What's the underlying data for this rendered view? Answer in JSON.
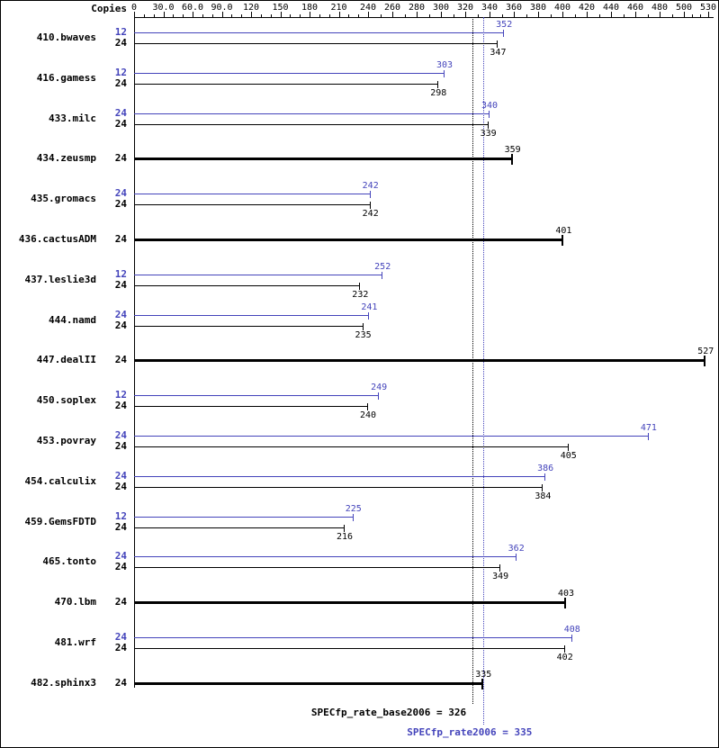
{
  "header": {
    "copies_label": "Copies"
  },
  "colors": {
    "peak": "#4444bb",
    "base": "#000000"
  },
  "chart_data": {
    "type": "bar",
    "orientation": "horizontal",
    "legend": "blue thin bars = peak (SPECfp_rate2006), black thin bars = base, bold black bars = base and peak equal",
    "axis": {
      "position": "top",
      "tick_values": [
        0,
        30,
        60,
        90,
        120,
        150,
        180,
        210,
        240,
        260,
        280,
        300,
        320,
        340,
        360,
        380,
        400,
        420,
        440,
        460,
        480,
        500,
        530
      ],
      "tick_labels": [
        "0",
        "30.0",
        "60.0",
        "90.0",
        "120",
        "150",
        "180",
        "210",
        "240",
        "260",
        "280",
        "300",
        "320",
        "340",
        "360",
        "380",
        "400",
        "420",
        "440",
        "460",
        "480",
        "500",
        "530"
      ],
      "scale": "piecewise-linear",
      "xlim": [
        0,
        530
      ]
    },
    "benchmarks": [
      {
        "name": "410.bwaves",
        "rows": [
          {
            "copies": 12,
            "value": 352,
            "kind": "peak"
          },
          {
            "copies": 24,
            "value": 347,
            "kind": "base"
          }
        ]
      },
      {
        "name": "416.gamess",
        "rows": [
          {
            "copies": 12,
            "value": 303,
            "kind": "peak"
          },
          {
            "copies": 24,
            "value": 298,
            "kind": "base"
          }
        ]
      },
      {
        "name": "433.milc",
        "rows": [
          {
            "copies": 24,
            "value": 340,
            "kind": "peak"
          },
          {
            "copies": 24,
            "value": 339,
            "kind": "base"
          }
        ]
      },
      {
        "name": "434.zeusmp",
        "rows": [
          {
            "copies": 24,
            "value": 359,
            "kind": "both"
          }
        ]
      },
      {
        "name": "435.gromacs",
        "rows": [
          {
            "copies": 24,
            "value": 242,
            "kind": "peak"
          },
          {
            "copies": 24,
            "value": 242,
            "kind": "base"
          }
        ]
      },
      {
        "name": "436.cactusADM",
        "rows": [
          {
            "copies": 24,
            "value": 401,
            "kind": "both"
          }
        ]
      },
      {
        "name": "437.leslie3d",
        "rows": [
          {
            "copies": 12,
            "value": 252,
            "kind": "peak"
          },
          {
            "copies": 24,
            "value": 232,
            "kind": "base"
          }
        ]
      },
      {
        "name": "444.namd",
        "rows": [
          {
            "copies": 24,
            "value": 241,
            "kind": "peak"
          },
          {
            "copies": 24,
            "value": 235,
            "kind": "base"
          }
        ]
      },
      {
        "name": "447.dealII",
        "rows": [
          {
            "copies": 24,
            "value": 527,
            "kind": "both"
          }
        ]
      },
      {
        "name": "450.soplex",
        "rows": [
          {
            "copies": 12,
            "value": 249,
            "kind": "peak"
          },
          {
            "copies": 24,
            "value": 240,
            "kind": "base"
          }
        ]
      },
      {
        "name": "453.povray",
        "rows": [
          {
            "copies": 24,
            "value": 471,
            "kind": "peak"
          },
          {
            "copies": 24,
            "value": 405,
            "kind": "base"
          }
        ]
      },
      {
        "name": "454.calculix",
        "rows": [
          {
            "copies": 24,
            "value": 386,
            "kind": "peak"
          },
          {
            "copies": 24,
            "value": 384,
            "kind": "base"
          }
        ]
      },
      {
        "name": "459.GemsFDTD",
        "rows": [
          {
            "copies": 12,
            "value": 225,
            "kind": "peak"
          },
          {
            "copies": 24,
            "value": 216,
            "kind": "base"
          }
        ]
      },
      {
        "name": "465.tonto",
        "rows": [
          {
            "copies": 24,
            "value": 362,
            "kind": "peak"
          },
          {
            "copies": 24,
            "value": 349,
            "kind": "base"
          }
        ]
      },
      {
        "name": "470.lbm",
        "rows": [
          {
            "copies": 24,
            "value": 403,
            "kind": "both"
          }
        ]
      },
      {
        "name": "481.wrf",
        "rows": [
          {
            "copies": 24,
            "value": 408,
            "kind": "peak"
          },
          {
            "copies": 24,
            "value": 402,
            "kind": "base"
          }
        ]
      },
      {
        "name": "482.sphinx3",
        "rows": [
          {
            "copies": 24,
            "value": 335,
            "kind": "both"
          }
        ]
      }
    ],
    "reference_lines": [
      {
        "kind": "base",
        "value": 326,
        "label": "SPECfp_rate_base2006 = 326"
      },
      {
        "kind": "peak",
        "value": 335,
        "label": "SPECfp_rate2006 = 335"
      }
    ]
  }
}
